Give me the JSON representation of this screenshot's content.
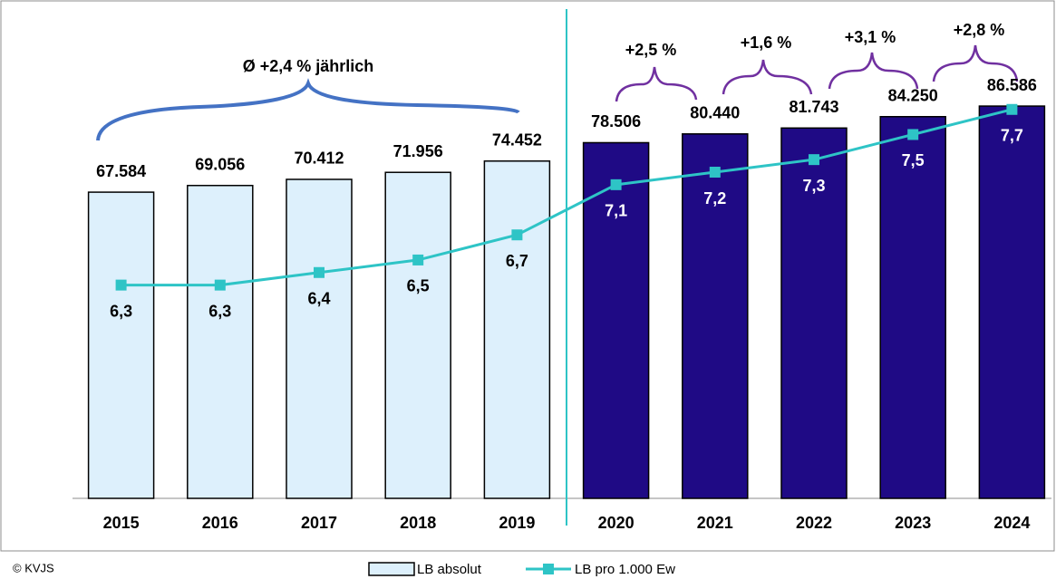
{
  "chart_data": {
    "type": "bar-line",
    "categories": [
      "2015",
      "2016",
      "2017",
      "2018",
      "2019",
      "2020",
      "2021",
      "2022",
      "2023",
      "2024"
    ],
    "series": [
      {
        "name": "LB absolut",
        "type": "bar",
        "color": "#ddf0fc",
        "colors": [
          "#ddf0fc",
          "#ddf0fc",
          "#ddf0fc",
          "#ddf0fc",
          "#ddf0fc",
          "#1f0a85",
          "#1f0a85",
          "#1f0a85",
          "#1f0a85",
          "#1f0a85"
        ],
        "values": [
          67584,
          69056,
          70412,
          71956,
          74452,
          78506,
          80440,
          81743,
          84250,
          86586
        ],
        "value_labels": [
          "67.584",
          "69.056",
          "70.412",
          "71.956",
          "74.452",
          "78.506",
          "80.440",
          "81.743",
          "84.250",
          "86.586"
        ]
      },
      {
        "name": "LB pro 1.000 Ew",
        "type": "line",
        "axis": "y2",
        "color": "#2ec4c6",
        "values": [
          6.3,
          6.3,
          6.4,
          6.5,
          6.7,
          7.1,
          7.2,
          7.3,
          7.5,
          7.7
        ],
        "value_labels": [
          "6,3",
          "6,3",
          "6,4",
          "6,5",
          "6,7",
          "7,1",
          "7,2",
          "7,3",
          "7,5",
          "7,7"
        ]
      }
    ],
    "ylim": [
      0,
      108000
    ],
    "y2lim": [
      4.6,
      8.5
    ],
    "annotations": [
      "Ø +2,4 % jährlich",
      "+2,5 %",
      "+1,6 %",
      "+3,1 %",
      "+2,8 %"
    ],
    "source": "© KVJS"
  }
}
